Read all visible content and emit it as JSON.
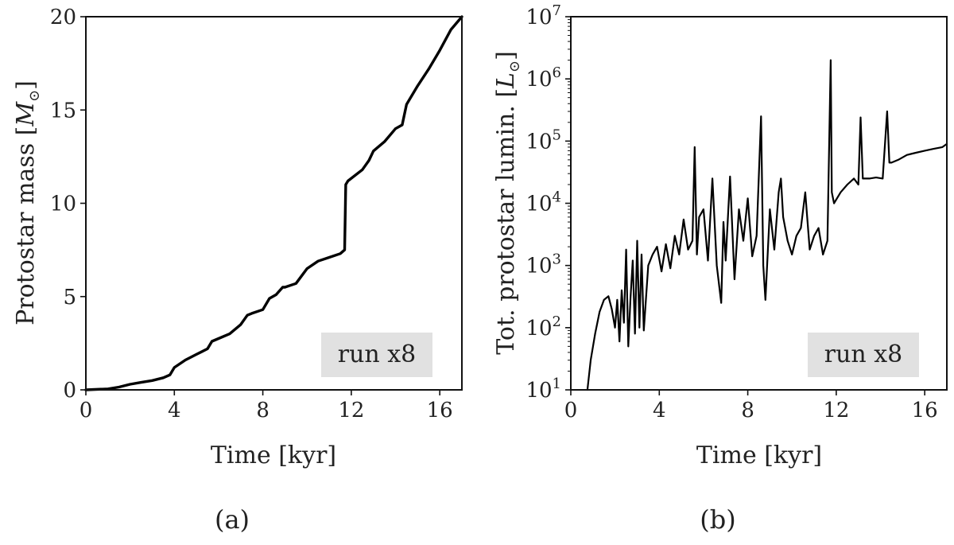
{
  "captions": [
    "(a)",
    "(b)"
  ],
  "chart_data": [
    {
      "type": "line",
      "scale": "linear",
      "xlabel": "Time [kyr]",
      "ylabel_main": "Protostar mass [",
      "ylabel_symbol": "M",
      "ylabel_subscript": "⊙",
      "ylabel_end": "]",
      "xlim": [
        0,
        17
      ],
      "ylim": [
        0,
        20
      ],
      "xticks": [
        0,
        4,
        8,
        12,
        16
      ],
      "yticks": [
        0,
        5,
        10,
        15,
        20
      ],
      "legend_box": "run x8",
      "legend_position": "bottom-right",
      "grid": false,
      "line_color": "#000000",
      "series": [
        {
          "x": [
            0,
            1.0,
            1.5,
            2.0,
            2.5,
            3.0,
            3.5,
            3.8,
            4.0,
            4.5,
            5.0,
            5.5,
            5.7,
            6.0,
            6.5,
            7.0,
            7.3,
            7.5,
            8.0,
            8.3,
            8.6,
            8.9,
            9.0,
            9.5,
            10.0,
            10.5,
            11.0,
            11.5,
            11.7,
            11.75,
            11.85,
            12.5,
            12.8,
            13.0,
            13.5,
            14.0,
            14.3,
            14.5,
            15.0,
            15.5,
            16.0,
            16.5,
            17.0
          ],
          "y": [
            0,
            0.05,
            0.15,
            0.3,
            0.4,
            0.5,
            0.65,
            0.8,
            1.2,
            1.6,
            1.9,
            2.2,
            2.6,
            2.75,
            3.0,
            3.5,
            4.0,
            4.1,
            4.3,
            4.9,
            5.1,
            5.5,
            5.5,
            5.7,
            6.5,
            6.9,
            7.1,
            7.3,
            7.5,
            11.0,
            11.2,
            11.8,
            12.3,
            12.8,
            13.3,
            14.0,
            14.2,
            15.3,
            16.3,
            17.2,
            18.2,
            19.3,
            20.0
          ]
        }
      ]
    },
    {
      "type": "line",
      "scale": "log",
      "xlabel": "Time [kyr]",
      "ylabel_main": "Tot. protostar lumin. [",
      "ylabel_symbol": "L",
      "ylabel_subscript": "⊙",
      "ylabel_end": "]",
      "xlim": [
        0,
        17
      ],
      "ylim": [
        10,
        10000000
      ],
      "xticks": [
        0,
        4,
        8,
        12,
        16
      ],
      "yticks_exponents": [
        1,
        2,
        3,
        4,
        5,
        6,
        7
      ],
      "ytick_base": "10",
      "legend_box": "run x8",
      "legend_position": "bottom-right",
      "grid": false,
      "line_color": "#000000",
      "series": [
        {
          "x": [
            0.75,
            0.9,
            1.1,
            1.3,
            1.5,
            1.7,
            1.85,
            2.0,
            2.1,
            2.2,
            2.3,
            2.4,
            2.5,
            2.6,
            2.7,
            2.8,
            2.9,
            3.0,
            3.1,
            3.2,
            3.3,
            3.5,
            3.7,
            3.9,
            4.1,
            4.3,
            4.5,
            4.7,
            4.9,
            5.1,
            5.3,
            5.5,
            5.6,
            5.7,
            5.8,
            6.0,
            6.2,
            6.4,
            6.6,
            6.8,
            6.9,
            7.0,
            7.2,
            7.4,
            7.6,
            7.8,
            8.0,
            8.2,
            8.4,
            8.6,
            8.7,
            8.8,
            9.0,
            9.2,
            9.4,
            9.5,
            9.6,
            9.8,
            10.0,
            10.2,
            10.4,
            10.6,
            10.8,
            11.0,
            11.2,
            11.4,
            11.6,
            11.75,
            11.8,
            11.9,
            12.2,
            12.5,
            12.8,
            13.0,
            13.1,
            13.2,
            13.5,
            13.8,
            14.1,
            14.3,
            14.4,
            14.5,
            14.8,
            15.2,
            15.6,
            16.0,
            16.4,
            16.8,
            17.0
          ],
          "y": [
            10,
            30,
            80,
            180,
            280,
            320,
            200,
            100,
            280,
            60,
            400,
            120,
            1800,
            50,
            300,
            1200,
            80,
            2500,
            100,
            1500,
            90,
            1000,
            1500,
            2000,
            800,
            2200,
            900,
            3000,
            1500,
            5500,
            1800,
            2500,
            80000,
            1500,
            6000,
            8000,
            1200,
            25000,
            1000,
            250,
            5000,
            1200,
            27000,
            600,
            8000,
            2500,
            12000,
            1400,
            3000,
            250000,
            1000,
            280,
            8000,
            1800,
            15000,
            25000,
            6000,
            2500,
            1500,
            3000,
            4000,
            15000,
            1800,
            3000,
            4000,
            1500,
            2500,
            2000000,
            15000,
            10000,
            15000,
            20000,
            25000,
            20000,
            240000,
            25000,
            25000,
            26000,
            25000,
            300000,
            45000,
            45000,
            50000,
            60000,
            65000,
            70000,
            75000,
            80000,
            90000
          ]
        }
      ]
    }
  ]
}
